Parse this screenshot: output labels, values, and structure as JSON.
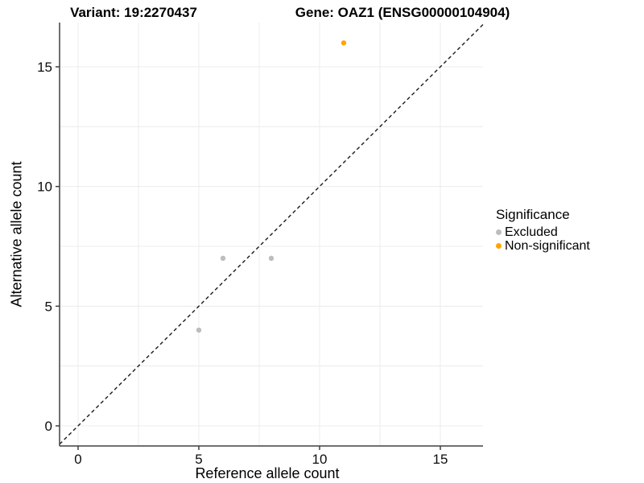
{
  "chart_data": {
    "type": "scatter",
    "titles": {
      "variant": "Variant: 19:2270437",
      "gene": "Gene: OAZ1 (ENSG00000104904)"
    },
    "xlabel": "Reference allele count",
    "ylabel": "Alternative allele count",
    "xlim": [
      -0.8,
      16.8
    ],
    "ylim": [
      -0.85,
      16.85
    ],
    "x_ticks": [
      0,
      5,
      10,
      15
    ],
    "y_ticks": [
      0,
      5,
      10,
      15
    ],
    "grid": true,
    "grid_interval": 2.5,
    "grid_color": "#ececec",
    "axis_color": "#404040",
    "legend": {
      "title": "Significance",
      "position": "right"
    },
    "series": [
      {
        "name": "Excluded",
        "color": "#BDBDBD",
        "points": [
          [
            5,
            4
          ],
          [
            6,
            7
          ],
          [
            8,
            7
          ]
        ]
      },
      {
        "name": "Non-significant",
        "color": "#FFA500",
        "points": [
          [
            11,
            16
          ]
        ]
      }
    ],
    "reference_line": {
      "type": "identity",
      "style": "dashed",
      "color": "#1a1a1a"
    }
  }
}
